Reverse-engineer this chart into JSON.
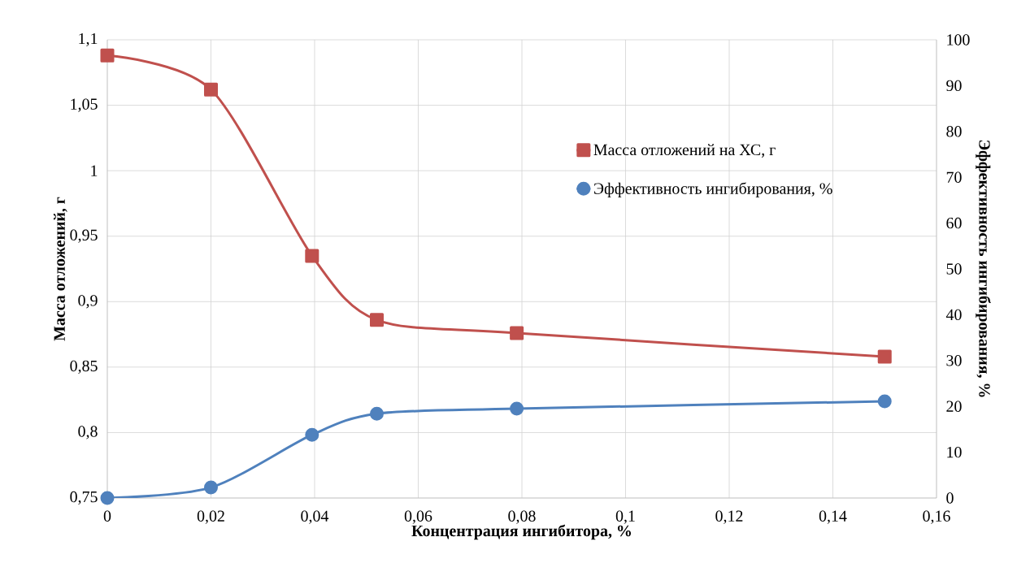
{
  "chart_data": {
    "type": "line",
    "xlabel": "Концентрация ингибитора, %",
    "ylabel": "Масса отложений, г",
    "y2label": "Эффективность ингибирования, %",
    "x": [
      0,
      0.02,
      0.0395,
      0.052,
      0.079,
      0.15
    ],
    "series": [
      {
        "name": "Масса отложений на ХС, г",
        "color": "#c0504d",
        "marker": "square",
        "axis": "y",
        "values": [
          1.088,
          1.062,
          0.935,
          0.886,
          0.876,
          0.858
        ]
      },
      {
        "name": "Эффективность ингибирования, %",
        "color": "#4f81bd",
        "marker": "circle",
        "axis": "y2",
        "values": [
          0,
          2.3,
          13.8,
          18.4,
          19.5,
          21.1
        ]
      }
    ],
    "xlim": [
      0,
      0.16
    ],
    "xticks": [
      0,
      {
        "value": 0.02,
        "label": "0,02"
      },
      {
        "value": 0.04,
        "label": "0,04"
      },
      {
        "value": 0.06,
        "label": "0,06"
      },
      {
        "value": 0.08,
        "label": "0,08"
      },
      {
        "value": 0.1,
        "label": "0,1"
      },
      {
        "value": 0.12,
        "label": "0,12"
      },
      {
        "value": 0.14,
        "label": "0,14"
      },
      {
        "value": 0.16,
        "label": "0,16"
      }
    ],
    "ylim": [
      0.75,
      1.1
    ],
    "yticks": [
      {
        "value": 0.75,
        "label": "0,75"
      },
      {
        "value": 0.8,
        "label": "0,8"
      },
      {
        "value": 0.85,
        "label": "0,85"
      },
      {
        "value": 0.9,
        "label": "0,9"
      },
      {
        "value": 0.95,
        "label": "0,95"
      },
      1,
      {
        "value": 1.05,
        "label": "1,05"
      },
      {
        "value": 1.1,
        "label": "1,1"
      }
    ],
    "y2lim": [
      0,
      100
    ],
    "y2ticks": [
      0,
      10,
      20,
      30,
      40,
      50,
      60,
      70,
      80,
      90,
      100
    ],
    "grid": true,
    "legend": "top right",
    "line_style": "solid"
  }
}
